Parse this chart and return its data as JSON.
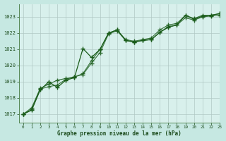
{
  "title": "Graphe pression niveau de la mer (hPa)",
  "background_color": "#c6e8e2",
  "plot_bg_color": "#d8f0ec",
  "grid_color": "#b0c8c4",
  "line_color": "#1a5c1a",
  "xlim": [
    -0.5,
    23
  ],
  "ylim": [
    1016.5,
    1023.8
  ],
  "yticks": [
    1017,
    1018,
    1019,
    1020,
    1021,
    1022,
    1023
  ],
  "xticks": [
    0,
    1,
    2,
    3,
    4,
    5,
    6,
    7,
    8,
    9,
    10,
    11,
    12,
    13,
    14,
    15,
    16,
    17,
    18,
    19,
    20,
    21,
    22,
    23
  ],
  "series1_x": [
    0,
    1,
    2,
    3,
    4,
    5,
    6,
    7,
    8,
    9,
    10,
    11,
    12,
    13,
    14,
    15,
    16,
    17,
    18,
    19,
    20,
    21,
    22,
    23
  ],
  "series1_y": [
    1017.0,
    1017.3,
    1018.55,
    1018.7,
    1018.8,
    1019.15,
    1019.3,
    1019.45,
    1020.15,
    1020.8,
    1021.95,
    1022.15,
    1021.55,
    1021.45,
    1021.55,
    1021.6,
    1022.05,
    1022.35,
    1022.5,
    1022.95,
    1022.8,
    1023.0,
    1023.05,
    1023.1
  ],
  "series2_x": [
    0,
    1,
    2,
    3,
    4,
    5,
    6,
    7,
    8,
    9,
    10,
    11,
    12,
    13,
    14,
    15,
    16,
    17,
    18,
    19,
    20,
    21,
    22,
    23
  ],
  "series2_y": [
    1017.0,
    1017.25,
    1018.5,
    1019.0,
    1018.65,
    1019.1,
    1019.25,
    1021.05,
    1020.5,
    1021.0,
    1022.0,
    1022.2,
    1021.55,
    1021.45,
    1021.55,
    1021.6,
    1022.05,
    1022.4,
    1022.5,
    1023.1,
    1022.85,
    1023.05,
    1023.1,
    1023.2
  ],
  "series3_x": [
    0,
    1,
    2,
    3,
    4,
    5,
    6,
    7,
    8,
    9,
    10,
    11,
    12,
    13,
    14,
    15,
    16,
    17,
    18,
    19,
    20,
    21,
    22,
    23
  ],
  "series3_y": [
    1017.0,
    1017.4,
    1018.6,
    1018.85,
    1019.1,
    1019.2,
    1019.3,
    1019.5,
    1020.3,
    1021.0,
    1022.0,
    1022.2,
    1021.6,
    1021.5,
    1021.6,
    1021.7,
    1022.2,
    1022.5,
    1022.6,
    1023.1,
    1022.9,
    1023.1,
    1023.1,
    1023.2
  ]
}
